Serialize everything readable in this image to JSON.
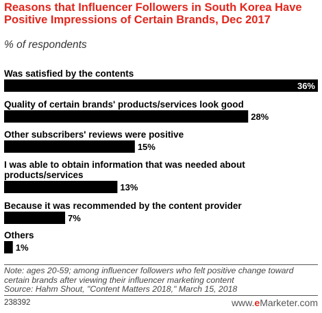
{
  "title": "Reasons that Influencer Followers in South Korea Have Positive Impressions of Certain Brands, Dec 2017",
  "subtitle": "% of respondents",
  "chart_data": {
    "type": "bar",
    "orientation": "horizontal",
    "unit": "%",
    "categories": [
      [
        "Was satisfied by the contents"
      ],
      [
        "Quality of certain brands' products/services look good"
      ],
      [
        "Other subscribers' reviews were positive"
      ],
      [
        "I was able to obtain information that was needed about",
        "products/services"
      ],
      [
        "Because it was recommended by the content provider"
      ],
      [
        "Others"
      ]
    ],
    "values": [
      36,
      28,
      15,
      13,
      7,
      1
    ],
    "value_labels": [
      "36%",
      "28%",
      "15%",
      "13%",
      "7%",
      "1%"
    ],
    "xlim": [
      0,
      36
    ],
    "bar_color": "#000000",
    "grid": false,
    "legend": false
  },
  "note": "Note: ages 20-59; among influencer followers who felt positive change toward certain brands after viewing their influencer marketing content",
  "source": "Source: Hahm Shout, \"Content Matters 2018,\" March 15, 2018",
  "chart_id": "238392",
  "logo": {
    "brand": "eMarketer",
    "prefix": "www.",
    "bold": "e",
    "rest": "Marketer",
    "suffix": ".com"
  }
}
